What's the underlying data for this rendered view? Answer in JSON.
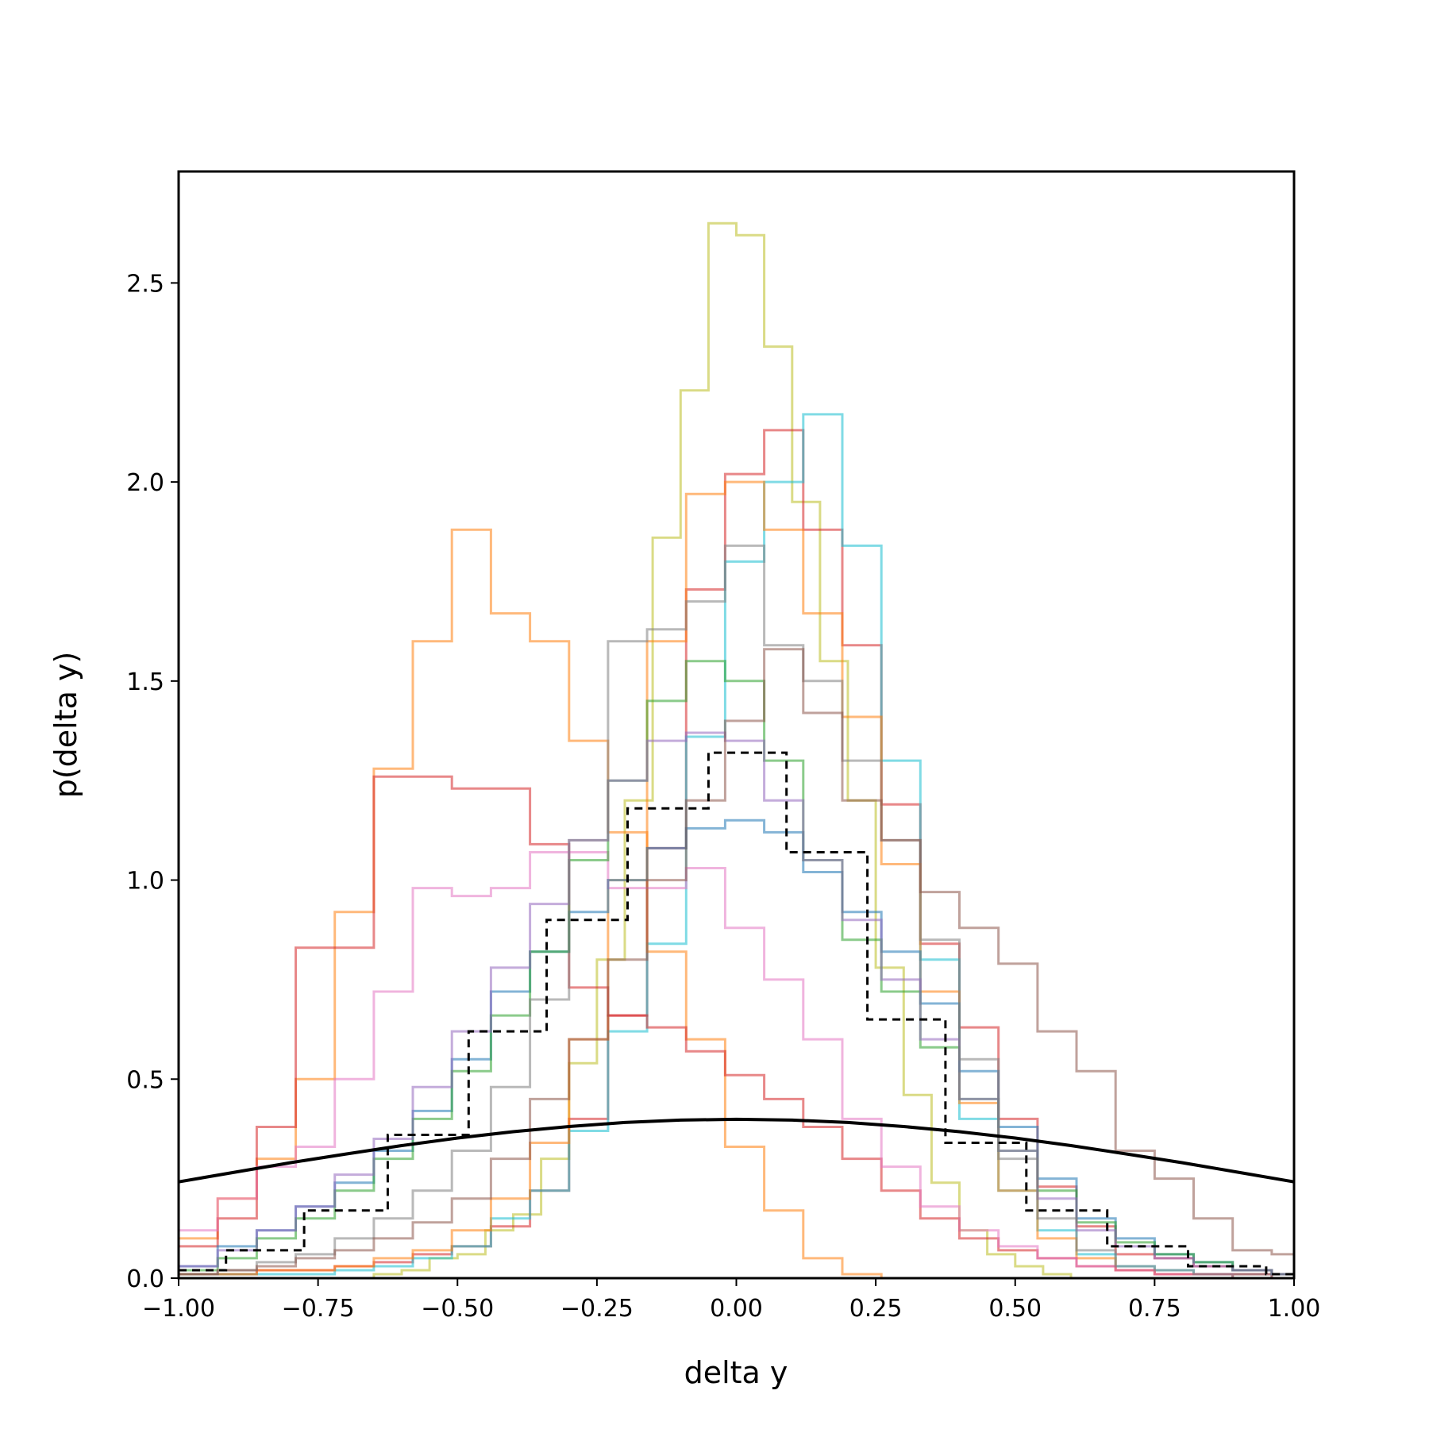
{
  "chart_data": {
    "type": "histogram-step",
    "xlabel": "delta y",
    "ylabel": "p(delta y)",
    "xlim": [
      -1.0,
      1.0
    ],
    "ylim": [
      0.0,
      2.78
    ],
    "xticks": [
      -1.0,
      -0.75,
      -0.5,
      -0.25,
      0.0,
      0.25,
      0.5,
      0.75,
      1.0
    ],
    "xtick_labels": [
      "−1.00",
      "−0.75",
      "−0.50",
      "−0.25",
      "0.00",
      "0.25",
      "0.50",
      "0.75",
      "1.00"
    ],
    "yticks": [
      0.0,
      0.5,
      1.0,
      1.5,
      2.0,
      2.5
    ],
    "ytick_labels": [
      "0.0",
      "0.5",
      "1.0",
      "1.5",
      "2.0",
      "2.5"
    ],
    "grid": false,
    "legend": "none",
    "series": [
      {
        "color": "#bcbd22",
        "style": "step",
        "alpha": 0.55,
        "linewidth": 3,
        "x": [
          -1.0,
          -0.95,
          -0.9,
          -0.85,
          -0.8,
          -0.75,
          -0.7,
          -0.65,
          -0.6,
          -0.55,
          -0.5,
          -0.45,
          -0.4,
          -0.35,
          -0.3,
          -0.25,
          -0.2,
          -0.15,
          -0.1,
          -0.05,
          0.0,
          0.05,
          0.1,
          0.15,
          0.2,
          0.25,
          0.3,
          0.35,
          0.4,
          0.45,
          0.5,
          0.55,
          0.6,
          0.65,
          0.7,
          0.75,
          0.8,
          0.85,
          0.9,
          0.95,
          1.0
        ],
        "y": [
          0.0,
          0.0,
          0.0,
          0.0,
          0.0,
          0.0,
          0.0,
          0.01,
          0.02,
          0.05,
          0.06,
          0.12,
          0.16,
          0.3,
          0.54,
          0.8,
          1.2,
          1.86,
          2.23,
          2.65,
          2.62,
          2.34,
          1.95,
          1.55,
          1.2,
          0.78,
          0.46,
          0.24,
          0.12,
          0.06,
          0.03,
          0.01,
          0.0,
          0.0,
          0.0,
          0.0,
          0.0,
          0.0,
          0.0,
          0.0,
          0.0
        ]
      },
      {
        "color": "#d62728",
        "style": "step",
        "alpha": 0.55,
        "linewidth": 3,
        "x": [
          -1.0,
          -0.93,
          -0.86,
          -0.79,
          -0.72,
          -0.65,
          -0.58,
          -0.51,
          -0.44,
          -0.37,
          -0.3,
          -0.23,
          -0.16,
          -0.09,
          -0.02,
          0.05,
          0.12,
          0.19,
          0.26,
          0.33,
          0.4,
          0.47,
          0.54,
          0.61,
          0.68,
          0.75,
          0.82,
          0.89,
          0.96,
          1.0
        ],
        "y": [
          0.01,
          0.01,
          0.02,
          0.02,
          0.03,
          0.04,
          0.06,
          0.08,
          0.13,
          0.22,
          0.4,
          0.66,
          1.08,
          1.73,
          2.02,
          2.13,
          1.88,
          1.59,
          1.19,
          0.84,
          0.63,
          0.4,
          0.23,
          0.13,
          0.06,
          0.05,
          0.03,
          0.02,
          0.01,
          0.01
        ]
      },
      {
        "color": "#17becf",
        "style": "step",
        "alpha": 0.55,
        "linewidth": 3,
        "x": [
          -1.0,
          -0.93,
          -0.86,
          -0.79,
          -0.72,
          -0.65,
          -0.58,
          -0.51,
          -0.44,
          -0.37,
          -0.3,
          -0.23,
          -0.16,
          -0.09,
          -0.02,
          0.05,
          0.12,
          0.19,
          0.26,
          0.33,
          0.4,
          0.47,
          0.54,
          0.61,
          0.68,
          0.75,
          0.82,
          0.89,
          0.96,
          1.0
        ],
        "y": [
          0.01,
          0.01,
          0.01,
          0.01,
          0.02,
          0.03,
          0.05,
          0.08,
          0.15,
          0.22,
          0.37,
          0.62,
          0.84,
          1.36,
          1.8,
          2.0,
          2.17,
          1.84,
          1.3,
          0.8,
          0.4,
          0.22,
          0.12,
          0.06,
          0.03,
          0.02,
          0.01,
          0.01,
          0.0,
          0.0
        ]
      },
      {
        "color": "#ff7f0e",
        "style": "step",
        "alpha": 0.55,
        "linewidth": 3,
        "x": [
          -1.0,
          -0.93,
          -0.86,
          -0.79,
          -0.72,
          -0.65,
          -0.58,
          -0.51,
          -0.44,
          -0.37,
          -0.3,
          -0.23,
          -0.16,
          -0.09,
          -0.02,
          0.05,
          0.12,
          0.19,
          0.26,
          0.33,
          0.4,
          0.47,
          0.54,
          0.61,
          0.68,
          0.75,
          0.82,
          0.89,
          0.96,
          1.0
        ],
        "y": [
          0.01,
          0.01,
          0.02,
          0.02,
          0.03,
          0.05,
          0.07,
          0.12,
          0.2,
          0.34,
          0.6,
          1.0,
          1.6,
          1.97,
          2.0,
          1.88,
          1.67,
          1.41,
          1.04,
          0.72,
          0.44,
          0.22,
          0.1,
          0.05,
          0.02,
          0.01,
          0.01,
          0.0,
          0.0,
          0.0
        ]
      },
      {
        "color": "#ff7f0e",
        "style": "step",
        "alpha": 0.55,
        "linewidth": 3,
        "x": [
          -1.0,
          -0.93,
          -0.86,
          -0.79,
          -0.72,
          -0.65,
          -0.58,
          -0.51,
          -0.44,
          -0.37,
          -0.3,
          -0.23,
          -0.16,
          -0.09,
          -0.02,
          0.05,
          0.12,
          0.19,
          0.26,
          0.33,
          0.4,
          0.47,
          0.54,
          0.61,
          0.68,
          0.75,
          0.82,
          0.89,
          0.96,
          1.0
        ],
        "y": [
          0.1,
          0.2,
          0.3,
          0.5,
          0.92,
          1.28,
          1.6,
          1.88,
          1.67,
          1.6,
          1.35,
          1.12,
          0.82,
          0.6,
          0.33,
          0.17,
          0.05,
          0.01,
          0.0,
          0.0,
          0.0,
          0.0,
          0.0,
          0.0,
          0.0,
          0.0,
          0.0,
          0.0,
          0.0,
          0.0
        ]
      },
      {
        "color": "#d62728",
        "style": "step",
        "alpha": 0.55,
        "linewidth": 3,
        "x": [
          -1.0,
          -0.93,
          -0.86,
          -0.79,
          -0.72,
          -0.65,
          -0.58,
          -0.51,
          -0.44,
          -0.37,
          -0.3,
          -0.23,
          -0.16,
          -0.09,
          -0.02,
          0.05,
          0.12,
          0.19,
          0.26,
          0.33,
          0.4,
          0.47,
          0.54,
          0.61,
          0.68,
          0.75,
          0.82,
          0.89,
          0.96,
          1.0
        ],
        "y": [
          0.08,
          0.15,
          0.38,
          0.83,
          0.83,
          1.26,
          1.26,
          1.23,
          1.23,
          1.09,
          0.73,
          0.66,
          0.63,
          0.57,
          0.51,
          0.45,
          0.38,
          0.3,
          0.22,
          0.15,
          0.1,
          0.07,
          0.05,
          0.03,
          0.02,
          0.01,
          0.01,
          0.01,
          0.0,
          0.0
        ]
      },
      {
        "color": "#e377c2",
        "style": "step",
        "alpha": 0.55,
        "linewidth": 3,
        "x": [
          -1.0,
          -0.93,
          -0.86,
          -0.79,
          -0.72,
          -0.65,
          -0.58,
          -0.51,
          -0.44,
          -0.37,
          -0.3,
          -0.23,
          -0.16,
          -0.09,
          -0.02,
          0.05,
          0.12,
          0.19,
          0.26,
          0.33,
          0.4,
          0.47,
          0.54,
          0.61,
          0.68,
          0.75,
          0.82,
          0.89,
          0.96,
          1.0
        ],
        "y": [
          0.12,
          0.2,
          0.28,
          0.33,
          0.5,
          0.72,
          0.98,
          0.96,
          0.98,
          1.07,
          1.07,
          0.98,
          0.98,
          1.03,
          0.88,
          0.75,
          0.6,
          0.4,
          0.28,
          0.18,
          0.12,
          0.08,
          0.05,
          0.03,
          0.02,
          0.01,
          0.01,
          0.0,
          0.0,
          0.0
        ]
      },
      {
        "color": "#1f77b4",
        "style": "step",
        "alpha": 0.55,
        "linewidth": 3,
        "x": [
          -1.0,
          -0.93,
          -0.86,
          -0.79,
          -0.72,
          -0.65,
          -0.58,
          -0.51,
          -0.44,
          -0.37,
          -0.3,
          -0.23,
          -0.16,
          -0.09,
          -0.02,
          0.05,
          0.12,
          0.19,
          0.26,
          0.33,
          0.4,
          0.47,
          0.54,
          0.61,
          0.68,
          0.75,
          0.82,
          0.89,
          0.96,
          1.0
        ],
        "y": [
          0.03,
          0.08,
          0.12,
          0.18,
          0.24,
          0.32,
          0.42,
          0.55,
          0.72,
          0.82,
          0.92,
          1.0,
          1.08,
          1.13,
          1.15,
          1.12,
          1.02,
          0.92,
          0.82,
          0.69,
          0.52,
          0.38,
          0.25,
          0.15,
          0.1,
          0.06,
          0.04,
          0.02,
          0.01,
          0.01
        ]
      },
      {
        "color": "#2ca02c",
        "style": "step",
        "alpha": 0.55,
        "linewidth": 3,
        "x": [
          -1.0,
          -0.93,
          -0.86,
          -0.79,
          -0.72,
          -0.65,
          -0.58,
          -0.51,
          -0.44,
          -0.37,
          -0.3,
          -0.23,
          -0.16,
          -0.09,
          -0.02,
          0.05,
          0.12,
          0.19,
          0.26,
          0.33,
          0.4,
          0.47,
          0.54,
          0.61,
          0.68,
          0.75,
          0.82,
          0.89,
          0.96,
          1.0
        ],
        "y": [
          0.02,
          0.05,
          0.1,
          0.15,
          0.22,
          0.3,
          0.4,
          0.52,
          0.66,
          0.82,
          1.05,
          1.25,
          1.45,
          1.55,
          1.5,
          1.3,
          1.05,
          0.85,
          0.72,
          0.58,
          0.45,
          0.32,
          0.22,
          0.14,
          0.09,
          0.06,
          0.04,
          0.02,
          0.01,
          0.01
        ]
      },
      {
        "color": "#9467bd",
        "style": "step",
        "alpha": 0.55,
        "linewidth": 3,
        "x": [
          -1.0,
          -0.93,
          -0.86,
          -0.79,
          -0.72,
          -0.65,
          -0.58,
          -0.51,
          -0.44,
          -0.37,
          -0.3,
          -0.23,
          -0.16,
          -0.09,
          -0.02,
          0.05,
          0.12,
          0.19,
          0.26,
          0.33,
          0.4,
          0.47,
          0.54,
          0.61,
          0.68,
          0.75,
          0.82,
          0.89,
          0.96,
          1.0
        ],
        "y": [
          0.03,
          0.07,
          0.12,
          0.18,
          0.26,
          0.35,
          0.48,
          0.62,
          0.78,
          0.94,
          1.1,
          1.25,
          1.35,
          1.37,
          1.35,
          1.2,
          1.05,
          0.9,
          0.75,
          0.6,
          0.45,
          0.32,
          0.2,
          0.12,
          0.08,
          0.05,
          0.03,
          0.02,
          0.01,
          0.01
        ]
      },
      {
        "color": "#7f7f7f",
        "style": "step",
        "alpha": 0.55,
        "linewidth": 3,
        "x": [
          -1.0,
          -0.93,
          -0.86,
          -0.79,
          -0.72,
          -0.65,
          -0.58,
          -0.51,
          -0.44,
          -0.37,
          -0.3,
          -0.23,
          -0.16,
          -0.09,
          -0.02,
          0.05,
          0.12,
          0.19,
          0.26,
          0.33,
          0.4,
          0.47,
          0.54,
          0.61,
          0.68,
          0.75,
          0.82,
          0.89,
          0.96,
          1.0
        ],
        "y": [
          0.01,
          0.02,
          0.04,
          0.06,
          0.1,
          0.15,
          0.22,
          0.32,
          0.48,
          0.7,
          1.1,
          1.6,
          1.63,
          1.7,
          1.84,
          1.59,
          1.5,
          1.3,
          1.1,
          0.85,
          0.55,
          0.3,
          0.15,
          0.07,
          0.03,
          0.02,
          0.01,
          0.0,
          0.0,
          0.0
        ]
      },
      {
        "color": "#8c564b",
        "style": "step",
        "alpha": 0.55,
        "linewidth": 3,
        "x": [
          -1.0,
          -0.93,
          -0.86,
          -0.79,
          -0.72,
          -0.65,
          -0.58,
          -0.51,
          -0.44,
          -0.37,
          -0.3,
          -0.23,
          -0.16,
          -0.09,
          -0.02,
          0.05,
          0.12,
          0.19,
          0.26,
          0.33,
          0.4,
          0.47,
          0.54,
          0.61,
          0.68,
          0.75,
          0.82,
          0.89,
          0.96,
          1.0
        ],
        "y": [
          0.01,
          0.02,
          0.03,
          0.05,
          0.07,
          0.1,
          0.14,
          0.2,
          0.3,
          0.45,
          0.6,
          0.8,
          1.0,
          1.2,
          1.4,
          1.58,
          1.42,
          1.2,
          1.1,
          0.97,
          0.88,
          0.79,
          0.62,
          0.52,
          0.32,
          0.25,
          0.15,
          0.07,
          0.06,
          0.05
        ]
      },
      {
        "color": "#000000",
        "style": "step-dashed",
        "alpha": 1.0,
        "linewidth": 3,
        "x": [
          -1.0,
          -0.915,
          -0.845,
          -0.775,
          -0.71,
          -0.625,
          -0.57,
          -0.48,
          -0.42,
          -0.34,
          -0.285,
          -0.195,
          -0.14,
          -0.05,
          0.0,
          0.09,
          0.14,
          0.235,
          0.29,
          0.375,
          0.43,
          0.52,
          0.58,
          0.665,
          0.72,
          0.81,
          0.86,
          0.95,
          1.0
        ],
        "y": [
          0.02,
          0.07,
          0.07,
          0.17,
          0.17,
          0.36,
          0.36,
          0.62,
          0.62,
          0.9,
          0.9,
          1.18,
          1.18,
          1.32,
          1.32,
          1.07,
          1.07,
          0.65,
          0.65,
          0.34,
          0.34,
          0.17,
          0.17,
          0.08,
          0.08,
          0.03,
          0.03,
          0.01,
          0.01
        ]
      },
      {
        "color": "#000000",
        "style": "line",
        "alpha": 1.0,
        "linewidth": 4,
        "x": [
          -1.0,
          -0.9,
          -0.8,
          -0.7,
          -0.6,
          -0.5,
          -0.4,
          -0.3,
          -0.2,
          -0.1,
          0.0,
          0.1,
          0.2,
          0.3,
          0.4,
          0.5,
          0.6,
          0.7,
          0.8,
          0.9,
          1.0
        ],
        "y": [
          0.242,
          0.266,
          0.29,
          0.312,
          0.333,
          0.352,
          0.368,
          0.381,
          0.391,
          0.397,
          0.399,
          0.397,
          0.391,
          0.381,
          0.368,
          0.352,
          0.333,
          0.312,
          0.29,
          0.266,
          0.242
        ]
      }
    ]
  }
}
